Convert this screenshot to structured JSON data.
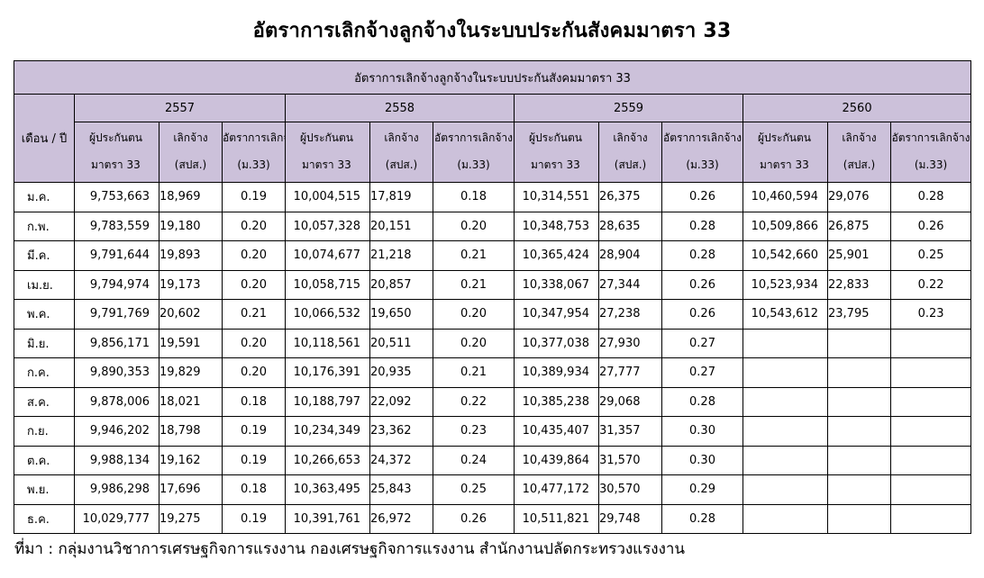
{
  "title": "อัตราการเลิกจ้างลูกจ้างในระบบประกันสังคมมาตรา 33",
  "table": {
    "caption": "อัตราการเลิกจ้างลูกจ้างในระบบประกันสังคมมาตรา 33",
    "month_header": "เดือน / ปี",
    "years": [
      "2557",
      "2558",
      "2559",
      "2560"
    ],
    "sub_headers": [
      {
        "line1": "ผู้ประกันตน",
        "line2": "มาตรา 33"
      },
      {
        "line1": "เลิกจ้าง",
        "line2": "(สปส.)"
      },
      {
        "line1": "อัตราการเลิกจ้าง",
        "line2": "(ม.33)"
      }
    ],
    "rows": [
      {
        "month": "ม.ค.",
        "values": [
          [
            "9,753,663",
            "18,969",
            "0.19"
          ],
          [
            "10,004,515",
            "17,819",
            "0.18"
          ],
          [
            "10,314,551",
            "26,375",
            "0.26"
          ],
          [
            "10,460,594",
            "29,076",
            "0.28"
          ]
        ]
      },
      {
        "month": "ก.พ.",
        "values": [
          [
            "9,783,559",
            "19,180",
            "0.20"
          ],
          [
            "10,057,328",
            "20,151",
            "0.20"
          ],
          [
            "10,348,753",
            "28,635",
            "0.28"
          ],
          [
            "10,509,866",
            "26,875",
            "0.26"
          ]
        ]
      },
      {
        "month": "มี.ค.",
        "values": [
          [
            "9,791,644",
            "19,893",
            "0.20"
          ],
          [
            "10,074,677",
            "21,218",
            "0.21"
          ],
          [
            "10,365,424",
            "28,904",
            "0.28"
          ],
          [
            "10,542,660",
            "25,901",
            "0.25"
          ]
        ]
      },
      {
        "month": "เม.ย.",
        "values": [
          [
            "9,794,974",
            "19,173",
            "0.20"
          ],
          [
            "10,058,715",
            "20,857",
            "0.21"
          ],
          [
            "10,338,067",
            "27,344",
            "0.26"
          ],
          [
            "10,523,934",
            "22,833",
            "0.22"
          ]
        ]
      },
      {
        "month": "พ.ค.",
        "values": [
          [
            "9,791,769",
            "20,602",
            "0.21"
          ],
          [
            "10,066,532",
            "19,650",
            "0.20"
          ],
          [
            "10,347,954",
            "27,238",
            "0.26"
          ],
          [
            "10,543,612",
            "23,795",
            "0.23"
          ]
        ]
      },
      {
        "month": "มิ.ย.",
        "values": [
          [
            "9,856,171",
            "19,591",
            "0.20"
          ],
          [
            "10,118,561",
            "20,511",
            "0.20"
          ],
          [
            "10,377,038",
            "27,930",
            "0.27"
          ],
          [
            "",
            "",
            ""
          ]
        ]
      },
      {
        "month": "ก.ค.",
        "values": [
          [
            "9,890,353",
            "19,829",
            "0.20"
          ],
          [
            "10,176,391",
            "20,935",
            "0.21"
          ],
          [
            "10,389,934",
            "27,777",
            "0.27"
          ],
          [
            "",
            "",
            ""
          ]
        ]
      },
      {
        "month": "ส.ค.",
        "values": [
          [
            "9,878,006",
            "18,021",
            "0.18"
          ],
          [
            "10,188,797",
            "22,092",
            "0.22"
          ],
          [
            "10,385,238",
            "29,068",
            "0.28"
          ],
          [
            "",
            "",
            ""
          ]
        ]
      },
      {
        "month": "ก.ย.",
        "values": [
          [
            "9,946,202",
            "18,798",
            "0.19"
          ],
          [
            "10,234,349",
            "23,362",
            "0.23"
          ],
          [
            "10,435,407",
            "31,357",
            "0.30"
          ],
          [
            "",
            "",
            ""
          ]
        ]
      },
      {
        "month": "ต.ค.",
        "values": [
          [
            "9,988,134",
            "19,162",
            "0.19"
          ],
          [
            "10,266,653",
            "24,372",
            "0.24"
          ],
          [
            "10,439,864",
            "31,570",
            "0.30"
          ],
          [
            "",
            "",
            ""
          ]
        ]
      },
      {
        "month": "พ.ย.",
        "values": [
          [
            "9,986,298",
            "17,696",
            "0.18"
          ],
          [
            "10,363,495",
            "25,843",
            "0.25"
          ],
          [
            "10,477,172",
            "30,570",
            "0.29"
          ],
          [
            "",
            "",
            ""
          ]
        ]
      },
      {
        "month": "ธ.ค.",
        "values": [
          [
            "10,029,777",
            "19,275",
            "0.19"
          ],
          [
            "10,391,761",
            "26,972",
            "0.26"
          ],
          [
            "10,511,821",
            "29,748",
            "0.28"
          ],
          [
            "",
            "",
            ""
          ]
        ]
      }
    ]
  },
  "source": "ที่มา : กลุ่มงานวิชาการเศรษฐกิจการแรงงาน กองเศรษฐกิจการแรงงาน สำนักงานปลัดกระทรวงแรงงาน",
  "colors": {
    "header_bg": "#ccc1da",
    "border": "#000000"
  }
}
